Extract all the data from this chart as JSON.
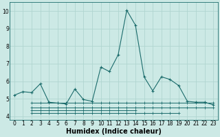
{
  "xlabel": "Humidex (Indice chaleur)",
  "xlim": [
    -0.5,
    23.5
  ],
  "ylim": [
    3.8,
    10.5
  ],
  "yticks": [
    4,
    5,
    6,
    7,
    8,
    9,
    10
  ],
  "xticks": [
    0,
    1,
    2,
    3,
    4,
    5,
    6,
    7,
    8,
    9,
    10,
    11,
    12,
    13,
    14,
    15,
    16,
    17,
    18,
    19,
    20,
    21,
    22,
    23
  ],
  "bg_color": "#cce9e5",
  "grid_color": "#b0d5d0",
  "line_color": "#1a6b6b",
  "main_line": {
    "x": [
      0,
      1,
      2,
      3,
      4,
      5,
      6,
      7,
      8,
      9,
      10,
      11,
      12,
      13,
      14,
      15,
      16,
      17,
      18,
      19,
      20,
      21,
      22,
      23
    ],
    "y": [
      5.2,
      5.4,
      5.35,
      5.85,
      4.8,
      4.75,
      4.7,
      5.55,
      4.95,
      4.85,
      6.8,
      6.55,
      7.5,
      10.05,
      9.2,
      6.25,
      5.45,
      6.25,
      6.1,
      5.75,
      4.85,
      4.8,
      4.8,
      4.65
    ]
  },
  "flat_lines": [
    {
      "x": [
        2,
        3,
        4,
        5,
        6,
        7,
        8,
        9,
        10,
        11,
        12,
        13,
        14,
        15,
        16,
        17,
        18,
        19,
        20,
        21,
        22,
        23
      ],
      "y": [
        4.75,
        4.75,
        4.75,
        4.75,
        4.75,
        4.75,
        4.75,
        4.75,
        4.75,
        4.75,
        4.75,
        4.75,
        4.75,
        4.75,
        4.75,
        4.75,
        4.75,
        4.75,
        4.75,
        4.75,
        4.75,
        4.75
      ]
    },
    {
      "x": [
        2,
        3,
        4,
        5,
        6,
        7,
        8,
        9,
        10,
        11,
        12,
        13,
        14,
        15,
        16,
        17,
        18,
        19,
        20,
        21,
        22,
        23
      ],
      "y": [
        4.5,
        4.5,
        4.5,
        4.5,
        4.5,
        4.5,
        4.5,
        4.5,
        4.5,
        4.5,
        4.5,
        4.5,
        4.5,
        4.5,
        4.5,
        4.5,
        4.5,
        4.5,
        4.5,
        4.5,
        4.5,
        4.5
      ]
    },
    {
      "x": [
        2,
        3,
        4,
        5,
        6,
        7,
        8,
        9,
        10,
        11,
        12,
        13,
        14
      ],
      "y": [
        4.35,
        4.35,
        4.35,
        4.35,
        4.35,
        4.35,
        4.35,
        4.35,
        4.35,
        4.35,
        4.35,
        4.35,
        4.35
      ]
    },
    {
      "x": [
        2,
        3,
        4,
        5,
        6,
        7,
        8,
        9,
        10,
        11,
        12,
        13,
        14,
        15,
        16,
        17,
        18,
        19
      ],
      "y": [
        4.2,
        4.2,
        4.2,
        4.2,
        4.2,
        4.2,
        4.2,
        4.2,
        4.2,
        4.2,
        4.2,
        4.2,
        4.2,
        4.2,
        4.2,
        4.2,
        4.2,
        4.2
      ]
    }
  ],
  "tick_fontsize": 5.5,
  "xlabel_fontsize": 7
}
